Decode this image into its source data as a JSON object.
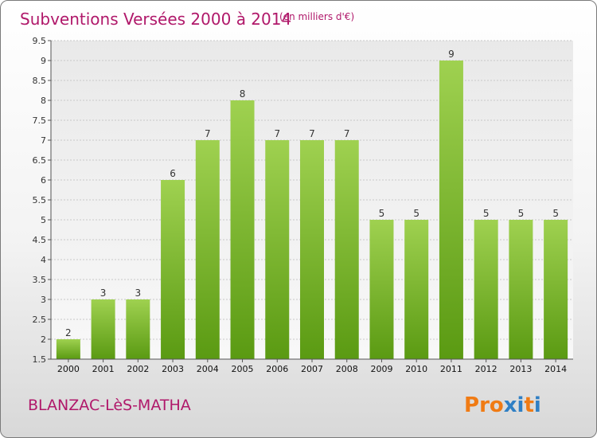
{
  "header": {
    "title": "Subventions Versées 2000 à 2014",
    "subtitle": "(en milliers d'€)"
  },
  "footer": {
    "commune": "BLANZAC-LèS-MATHA",
    "logo_text": "Proxiti"
  },
  "colors": {
    "title": "#b0186a",
    "bar_top": "#9fd150",
    "bar_bottom": "#5a9a12",
    "logo_letters": [
      "#f07b14",
      "#f07b14",
      "#f07b14",
      "#2f7fc4",
      "#2f7fc4",
      "#f07b14",
      "#2f7fc4"
    ]
  },
  "chart_data": {
    "type": "bar",
    "title": "Subventions Versées 2000 à 2014",
    "subtitle": "(en milliers d'€)",
    "categories": [
      "2000",
      "2001",
      "2002",
      "2003",
      "2004",
      "2005",
      "2006",
      "2007",
      "2008",
      "2009",
      "2010",
      "2011",
      "2012",
      "2013",
      "2014"
    ],
    "values": [
      2,
      3,
      3,
      6,
      7,
      8,
      7,
      7,
      7,
      5,
      5,
      9,
      5,
      5,
      5
    ],
    "data_labels": [
      "2",
      "3",
      "3",
      "6",
      "7",
      "8",
      "7",
      "7",
      "7",
      "5",
      "5",
      "9",
      "5",
      "5",
      "5"
    ],
    "ylim": [
      1.5,
      9.5
    ],
    "yticks": [
      "1.5",
      "2",
      "2.5",
      "3",
      "3.5",
      "4",
      "4.5",
      "5",
      "5.5",
      "6",
      "6.5",
      "7",
      "7.5",
      "8",
      "8.5",
      "9",
      "9.5"
    ],
    "grid": true,
    "legend": "none"
  }
}
